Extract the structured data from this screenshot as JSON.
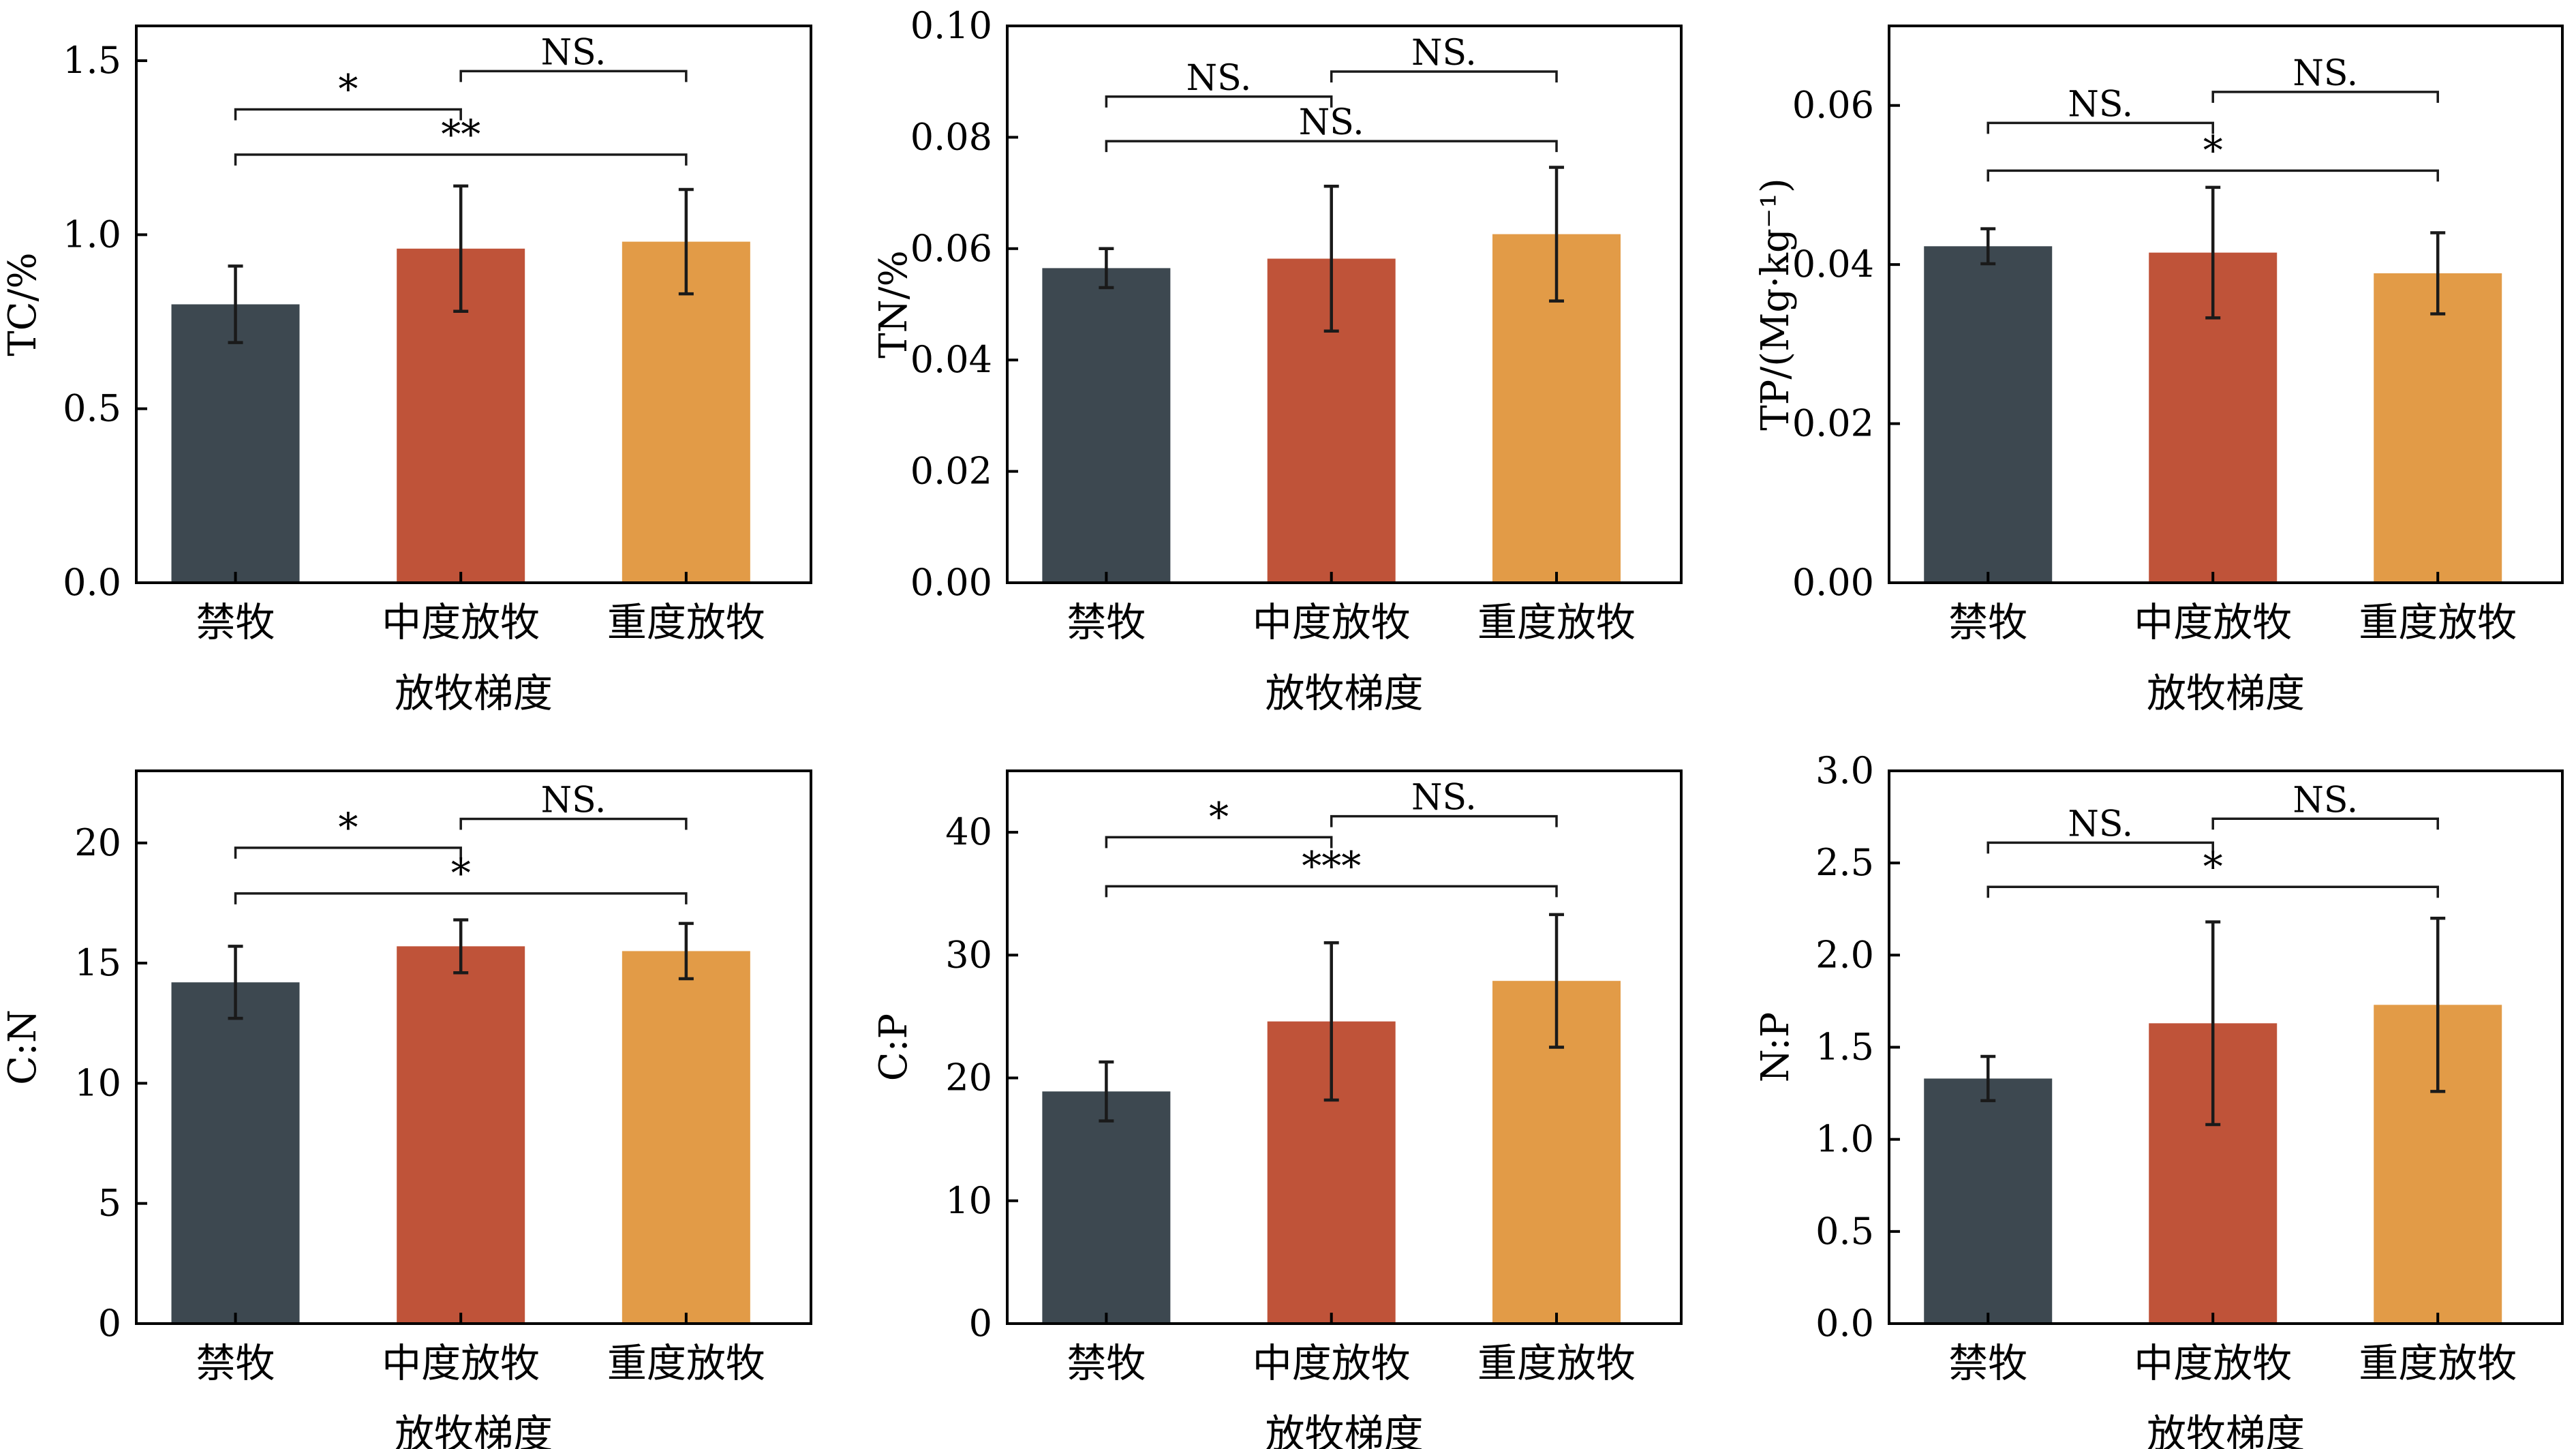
{
  "colors": {
    "bars": [
      "#3d4850",
      "#bf5339",
      "#e29b47"
    ],
    "axis": "#000000",
    "errorbar": "#1a1a1a"
  },
  "chart_data": [
    {
      "type": "bar",
      "categories": [
        "禁牧",
        "中度放牧",
        "重度放牧"
      ],
      "xlabel": "放牧梯度",
      "ylabel": "TC/%",
      "ylim": [
        0,
        1.6
      ],
      "yticks": [
        0.0,
        0.5,
        1.0,
        1.5
      ],
      "ytick_labels": [
        "0.0",
        "0.5",
        "1.0",
        "1.5"
      ],
      "values": [
        0.8,
        0.96,
        0.98
      ],
      "errors": [
        0.11,
        0.18,
        0.15
      ],
      "brackets": [
        {
          "from": 0,
          "to": 1,
          "y": 1.36,
          "label": "*"
        },
        {
          "from": 1,
          "to": 2,
          "y": 1.47,
          "label": "NS."
        },
        {
          "from": 0,
          "to": 2,
          "y": 1.23,
          "label": "**"
        }
      ]
    },
    {
      "type": "bar",
      "categories": [
        "禁牧",
        "中度放牧",
        "重度放牧"
      ],
      "xlabel": "放牧梯度",
      "ylabel": "TN/%",
      "ylim": [
        0,
        0.1
      ],
      "yticks": [
        0.0,
        0.02,
        0.04,
        0.06,
        0.08,
        0.1
      ],
      "ytick_labels": [
        "0.00",
        "0.02",
        "0.04",
        "0.06",
        "0.08",
        "0.10"
      ],
      "values": [
        0.0565,
        0.0582,
        0.0626
      ],
      "errors": [
        0.0035,
        0.013,
        0.012
      ],
      "brackets": [
        {
          "from": 0,
          "to": 1,
          "y": 0.0873,
          "label": "NS."
        },
        {
          "from": 1,
          "to": 2,
          "y": 0.0918,
          "label": "NS."
        },
        {
          "from": 0,
          "to": 2,
          "y": 0.0793,
          "label": "NS."
        }
      ]
    },
    {
      "type": "bar",
      "categories": [
        "禁牧",
        "中度放牧",
        "重度放牧"
      ],
      "xlabel": "放牧梯度",
      "ylabel": "TP/(Mg·kg⁻¹)",
      "ylim": [
        0,
        0.07
      ],
      "yticks": [
        0.0,
        0.02,
        0.04,
        0.06
      ],
      "ytick_labels": [
        "0.00",
        "0.02",
        "0.04",
        "0.06"
      ],
      "values": [
        0.0423,
        0.0415,
        0.0389
      ],
      "errors": [
        0.0022,
        0.0082,
        0.0051
      ],
      "brackets": [
        {
          "from": 0,
          "to": 1,
          "y": 0.0578,
          "label": "NS."
        },
        {
          "from": 1,
          "to": 2,
          "y": 0.0617,
          "label": "NS."
        },
        {
          "from": 0,
          "to": 2,
          "y": 0.0518,
          "label": "*"
        }
      ]
    },
    {
      "type": "bar",
      "categories": [
        "禁牧",
        "中度放牧",
        "重度放牧"
      ],
      "xlabel": "放牧梯度",
      "ylabel": "C:N",
      "ylim": [
        0,
        23
      ],
      "yticks": [
        0,
        5,
        10,
        15,
        20
      ],
      "ytick_labels": [
        "0",
        "5",
        "10",
        "15",
        "20"
      ],
      "values": [
        14.2,
        15.7,
        15.5
      ],
      "errors": [
        1.5,
        1.1,
        1.15
      ],
      "brackets": [
        {
          "from": 0,
          "to": 1,
          "y": 19.8,
          "label": "*"
        },
        {
          "from": 1,
          "to": 2,
          "y": 21.0,
          "label": "NS."
        },
        {
          "from": 0,
          "to": 2,
          "y": 17.9,
          "label": "*"
        }
      ]
    },
    {
      "type": "bar",
      "categories": [
        "禁牧",
        "中度放牧",
        "重度放牧"
      ],
      "xlabel": "放牧梯度",
      "ylabel": "C:P",
      "ylim": [
        0,
        45
      ],
      "yticks": [
        0,
        10,
        20,
        30,
        40
      ],
      "ytick_labels": [
        "0",
        "10",
        "20",
        "30",
        "40"
      ],
      "values": [
        18.9,
        24.6,
        27.9
      ],
      "errors": [
        2.4,
        6.4,
        5.4
      ],
      "brackets": [
        {
          "from": 0,
          "to": 1,
          "y": 39.6,
          "label": "*"
        },
        {
          "from": 1,
          "to": 2,
          "y": 41.3,
          "label": "NS."
        },
        {
          "from": 0,
          "to": 2,
          "y": 35.6,
          "label": "***"
        }
      ]
    },
    {
      "type": "bar",
      "categories": [
        "禁牧",
        "中度放牧",
        "重度放牧"
      ],
      "xlabel": "放牧梯度",
      "ylabel": "N:P",
      "ylim": [
        0,
        3.0
      ],
      "yticks": [
        0.0,
        0.5,
        1.0,
        1.5,
        2.0,
        2.5,
        3.0
      ],
      "ytick_labels": [
        "0.0",
        "0.5",
        "1.0",
        "1.5",
        "2.0",
        "2.5",
        "3.0"
      ],
      "values": [
        1.33,
        1.63,
        1.73
      ],
      "errors": [
        0.12,
        0.55,
        0.47
      ],
      "brackets": [
        {
          "from": 0,
          "to": 1,
          "y": 2.61,
          "label": "NS."
        },
        {
          "from": 1,
          "to": 2,
          "y": 2.74,
          "label": "NS."
        },
        {
          "from": 0,
          "to": 2,
          "y": 2.37,
          "label": "*"
        }
      ]
    }
  ]
}
